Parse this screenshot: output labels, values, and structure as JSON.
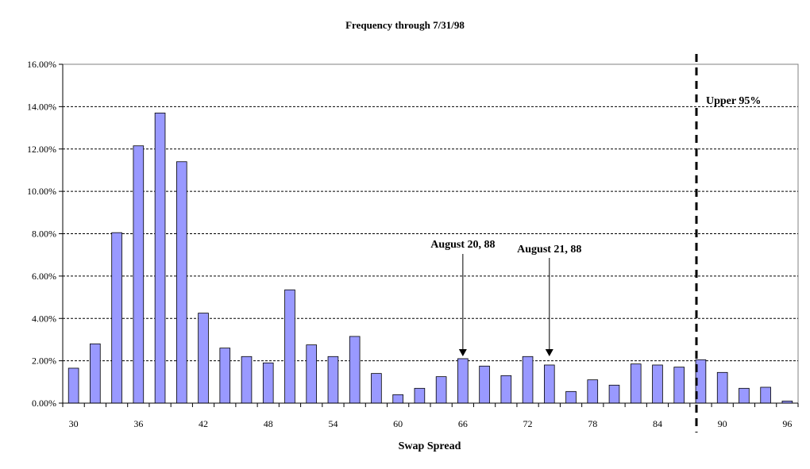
{
  "chart_data": {
    "type": "bar",
    "title": "Frequency through 7/31/98",
    "xlabel": "Swap Spread",
    "ylabel": "",
    "ylim": [
      0,
      16
    ],
    "y_tick_values": [
      0,
      2,
      4,
      6,
      8,
      10,
      12,
      14,
      16
    ],
    "y_tick_labels": [
      "0.00%",
      "2.00%",
      "4.00%",
      "6.00%",
      "8.00%",
      "10.00%",
      "12.00%",
      "14.00%",
      "16.00%"
    ],
    "x_tick_labels": [
      "30",
      "36",
      "42",
      "48",
      "54",
      "60",
      "66",
      "72",
      "78",
      "84",
      "90",
      "96"
    ],
    "categories": [
      30,
      32,
      34,
      36,
      38,
      40,
      42,
      44,
      46,
      48,
      50,
      52,
      54,
      56,
      58,
      60,
      62,
      64,
      66,
      68,
      70,
      72,
      74,
      76,
      78,
      80,
      82,
      84,
      86,
      88,
      90,
      92,
      94,
      96
    ],
    "values": [
      1.65,
      2.8,
      8.05,
      12.15,
      13.7,
      11.4,
      4.25,
      2.6,
      2.2,
      1.9,
      5.35,
      2.75,
      2.2,
      3.15,
      1.4,
      0.4,
      0.7,
      1.25,
      2.1,
      1.75,
      1.3,
      2.2,
      1.8,
      0.55,
      1.1,
      0.85,
      1.85,
      1.8,
      1.7,
      2.05,
      1.45,
      0.7,
      0.75,
      0.1
    ],
    "bar_color": "#9999ff",
    "grid": true,
    "reference_line": {
      "x": 87.6,
      "label": "Upper 95%"
    },
    "annotations": [
      {
        "text": "August 20, 88",
        "x": 66
      },
      {
        "text": "August 21, 88",
        "x": 74
      }
    ]
  }
}
